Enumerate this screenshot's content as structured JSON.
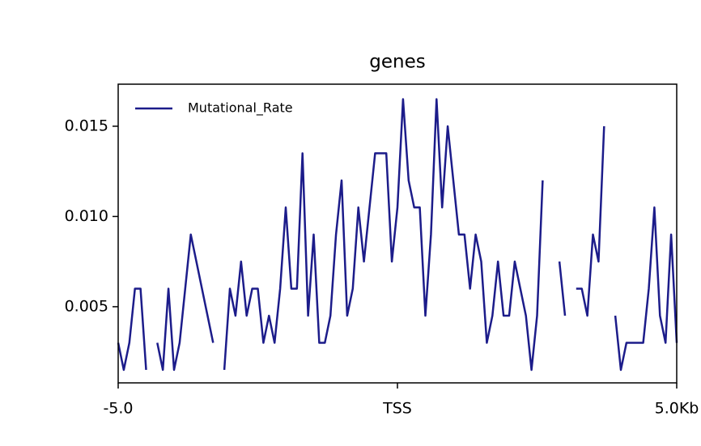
{
  "chart_data": {
    "type": "line",
    "title": "genes",
    "x": [
      0,
      1,
      2,
      3,
      4,
      5,
      6,
      7,
      8,
      9,
      10,
      11,
      12,
      13,
      14,
      15,
      16,
      17,
      18,
      19,
      20,
      21,
      22,
      23,
      24,
      25,
      26,
      27,
      28,
      29,
      30,
      31,
      32,
      33,
      34,
      35,
      36,
      37,
      38,
      39,
      40,
      41,
      42,
      43,
      44,
      45,
      46,
      47,
      48,
      49,
      50,
      51,
      52,
      53,
      54,
      55,
      56,
      57,
      58,
      59,
      60,
      61,
      62,
      63,
      64,
      65,
      66,
      67,
      68,
      69,
      70,
      71,
      72,
      73,
      74,
      75,
      76,
      77,
      78,
      79,
      80,
      81,
      82,
      83,
      84,
      85,
      86,
      87,
      88,
      89,
      90,
      91,
      92,
      93,
      94,
      95,
      96,
      97,
      98,
      99,
      100
    ],
    "series": [
      {
        "name": "Mutational_Rate",
        "color": "#1c1c8a",
        "values": [
          0.003,
          0.0015,
          0.003,
          0.006,
          0.006,
          0.0015,
          null,
          0.003,
          0.0015,
          0.006,
          0.0015,
          0.003,
          0.006,
          0.009,
          0.0075,
          0.006,
          0.0045,
          0.003,
          null,
          0.0015,
          0.006,
          0.0045,
          0.0075,
          0.0045,
          0.006,
          0.006,
          0.003,
          0.0045,
          0.003,
          0.006,
          0.0105,
          0.006,
          0.006,
          0.0135,
          0.0045,
          0.009,
          0.003,
          0.003,
          0.0045,
          0.009,
          0.012,
          0.0045,
          0.006,
          0.0105,
          0.0075,
          0.0105,
          0.0135,
          0.0135,
          0.0135,
          0.0075,
          0.0105,
          0.0165,
          0.012,
          0.0105,
          0.0105,
          0.0045,
          0.009,
          0.0165,
          0.0105,
          0.015,
          0.012,
          0.009,
          0.009,
          0.006,
          0.009,
          0.0075,
          0.003,
          0.0045,
          0.0075,
          0.0045,
          0.0045,
          0.0075,
          0.006,
          0.0045,
          0.0015,
          0.0045,
          0.012,
          null,
          null,
          0.0075,
          0.0045,
          null,
          0.006,
          0.006,
          0.0045,
          0.009,
          0.0075,
          0.015,
          null,
          0.0045,
          0.0015,
          0.003,
          0.003,
          0.003,
          0.003,
          0.006,
          0.0105,
          0.0045,
          0.003,
          0.009,
          0.003
        ]
      }
    ],
    "xlim": [
      0,
      100
    ],
    "xticks": [
      {
        "value": 0,
        "label": "-5.0"
      },
      {
        "value": 50,
        "label": "TSS"
      },
      {
        "value": 100,
        "label": "5.0Kb"
      }
    ],
    "ylim": [
      0.00078,
      0.01733
    ],
    "yticks": [
      0.005,
      {
        "value": 0.01,
        "label": "0.010"
      },
      0.015
    ],
    "legend": "upper left"
  }
}
